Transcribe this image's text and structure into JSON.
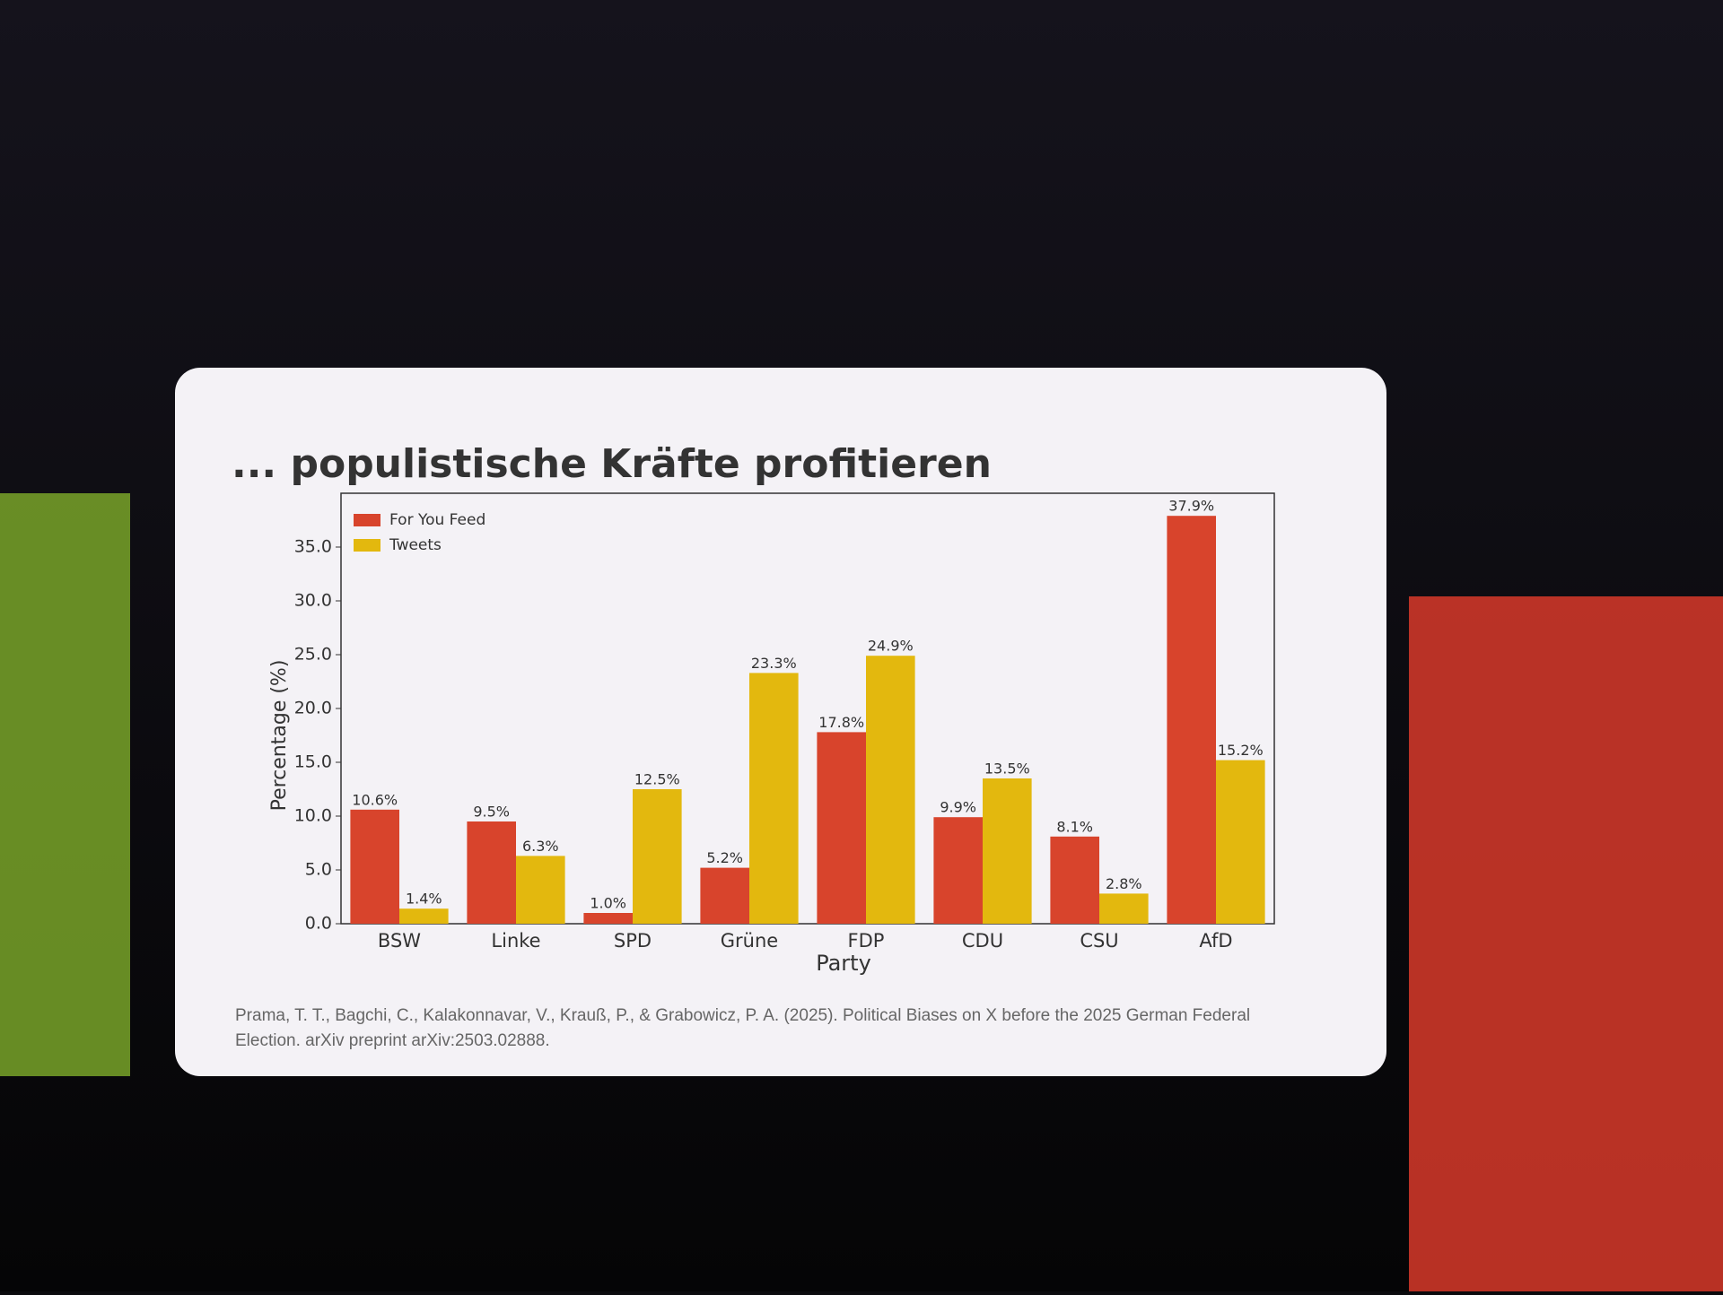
{
  "chart_data": {
    "type": "bar",
    "title": "... populistische Kräfte profitieren",
    "xlabel": "Party",
    "ylabel": "Percentage (%)",
    "categories": [
      "BSW",
      "Linke",
      "SPD",
      "Grüne",
      "FDP",
      "CDU",
      "CSU",
      "AfD"
    ],
    "series": [
      {
        "name": "For You Feed",
        "color": "#d8442c",
        "values": [
          10.6,
          9.5,
          1.0,
          5.2,
          17.8,
          9.9,
          8.1,
          37.9
        ],
        "value_labels": [
          "10.6%",
          "9.5%",
          "1.0%",
          "5.2%",
          "17.8%",
          "9.9%",
          "8.1%",
          "37.9%"
        ]
      },
      {
        "name": "Tweets",
        "color": "#e3b80e",
        "values": [
          1.4,
          6.3,
          12.5,
          23.3,
          24.9,
          13.5,
          2.8,
          15.2
        ],
        "value_labels": [
          "1.4%",
          "6.3%",
          "12.5%",
          "23.3%",
          "24.9%",
          "13.5%",
          "2.8%",
          "15.2%"
        ]
      }
    ],
    "ylim": [
      0,
      40
    ],
    "yticks": [
      {
        "value": 0,
        "label": "0.0"
      },
      {
        "value": 5,
        "label": "5.0"
      },
      {
        "value": 10,
        "label": "10.0"
      },
      {
        "value": 15,
        "label": "15.0"
      },
      {
        "value": 20,
        "label": "20.0"
      },
      {
        "value": 25,
        "label": "25.0"
      },
      {
        "value": 30,
        "label": "30.0"
      },
      {
        "value": 35,
        "label": "35.0"
      }
    ],
    "legend": "upper-left",
    "source": [
      "Prama, T. T., Bagchi, C., Kalakonnavar, V., Krauß, P., & Grabowicz, P. A. (2025). Political Biases on X before the 2025 German Federal",
      "Election. arXiv preprint arXiv:2503.02888."
    ]
  }
}
